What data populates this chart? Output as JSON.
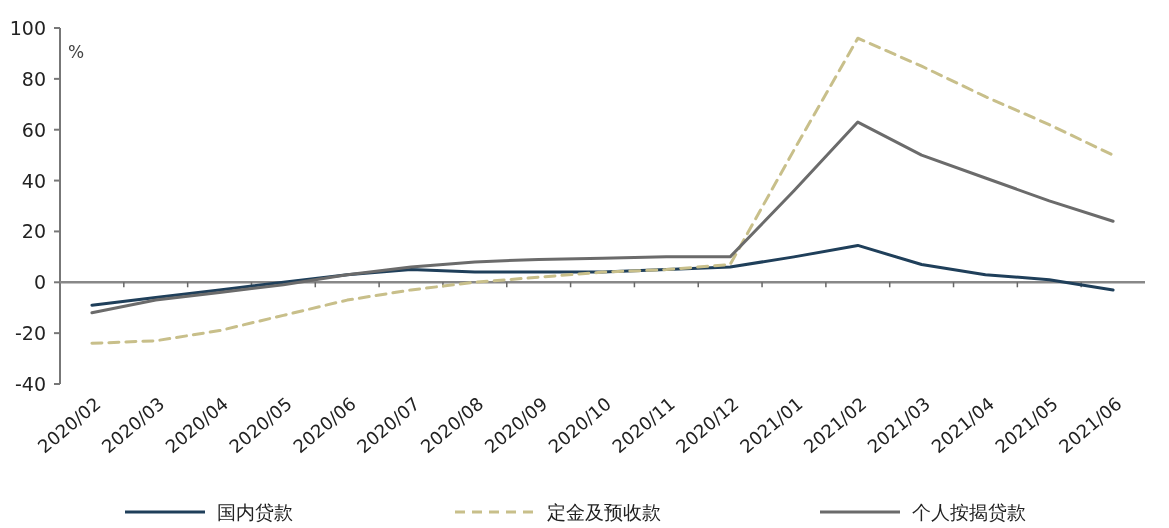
{
  "chart_data": {
    "type": "line",
    "ylabel": "%",
    "categories": [
      "2020/02",
      "2020/03",
      "2020/04",
      "2020/05",
      "2020/06",
      "2020/07",
      "2020/08",
      "2020/09",
      "2020/10",
      "2020/11",
      "2020/12",
      "2021/01",
      "2021/02",
      "2021/03",
      "2021/04",
      "2021/05",
      "2021/06"
    ],
    "series": [
      {
        "name": "国内贷款",
        "color": "#1f3f5a",
        "line_style": "solid",
        "values": [
          -9,
          -6,
          -3,
          0,
          3,
          5,
          4,
          4,
          4,
          5,
          6,
          10,
          14.5,
          7,
          3,
          1,
          -3
        ]
      },
      {
        "name": "定金及预收款",
        "color": "#c8bf8a",
        "line_style": "dashed",
        "values": [
          -24,
          -23,
          -19,
          -13,
          -7,
          -3,
          0,
          2,
          4,
          5,
          7,
          52,
          96,
          85,
          73,
          62,
          50
        ]
      },
      {
        "name": "个人按揭贷款",
        "color": "#6b6b6b",
        "line_style": "solid",
        "values": [
          -12,
          -7,
          -4,
          -1,
          3,
          6,
          8,
          9,
          9.5,
          10,
          10,
          36,
          63,
          50,
          41,
          32,
          24
        ]
      }
    ],
    "ylim": [
      -40,
      100
    ],
    "yticks": [
      -40,
      -20,
      0,
      20,
      40,
      60,
      80,
      100
    ],
    "legend": "bottom",
    "marker": "none"
  }
}
